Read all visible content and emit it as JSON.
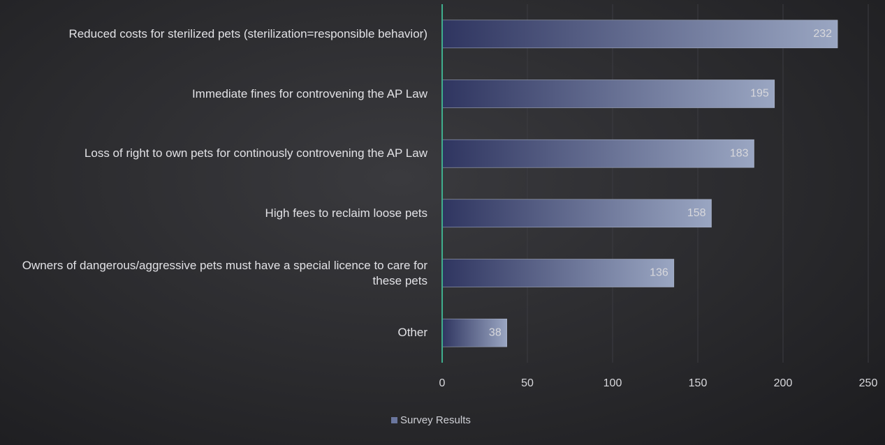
{
  "chart_data": {
    "type": "bar",
    "orientation": "horizontal",
    "categories": [
      "Reduced costs for sterilized pets (sterilization=responsible behavior)",
      "Immediate fines for controvening the AP Law",
      "Loss of right to own pets for continously controvening the AP Law",
      "High fees to reclaim loose pets",
      "Owners of dangerous/aggressive pets must have a special licence to care for these pets",
      "Other"
    ],
    "series": [
      {
        "name": "Survey Results",
        "color": "#6a769e",
        "values": [
          232,
          195,
          183,
          158,
          136,
          38
        ]
      }
    ],
    "xlim": [
      0,
      250
    ],
    "xticks": [
      0,
      50,
      100,
      150,
      200,
      250
    ],
    "grid": true,
    "legend": "bottom"
  }
}
